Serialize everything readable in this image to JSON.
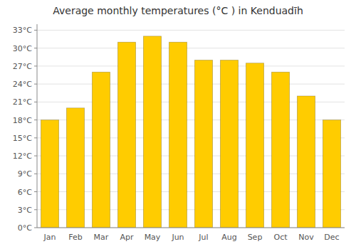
{
  "chart_data": {
    "type": "bar",
    "title": "Average monthly temperatures (°C ) in Kenduadīh",
    "categories": [
      "Jan",
      "Feb",
      "Mar",
      "Apr",
      "May",
      "Jun",
      "Jul",
      "Aug",
      "Sep",
      "Oct",
      "Nov",
      "Dec"
    ],
    "values": [
      18,
      20,
      26,
      31,
      32,
      31,
      28,
      28,
      27.5,
      26,
      22,
      18
    ],
    "color": "#FFCC00",
    "ylim": [
      0,
      34
    ],
    "yticks": [
      {
        "value": 0,
        "label": "0°C"
      },
      {
        "value": 3,
        "label": "3°C"
      },
      {
        "value": 6,
        "label": "6°C"
      },
      {
        "value": 9,
        "label": "9°C"
      },
      {
        "value": 12,
        "label": "12°C"
      },
      {
        "value": 15,
        "label": "15°C"
      },
      {
        "value": 18,
        "label": "18°C"
      },
      {
        "value": 21,
        "label": "21°C"
      },
      {
        "value": 24,
        "label": "24°C"
      },
      {
        "value": 27,
        "label": "27°C"
      },
      {
        "value": 30,
        "label": "30°C"
      },
      {
        "value": 33,
        "label": "33°C"
      }
    ],
    "grid": true
  }
}
